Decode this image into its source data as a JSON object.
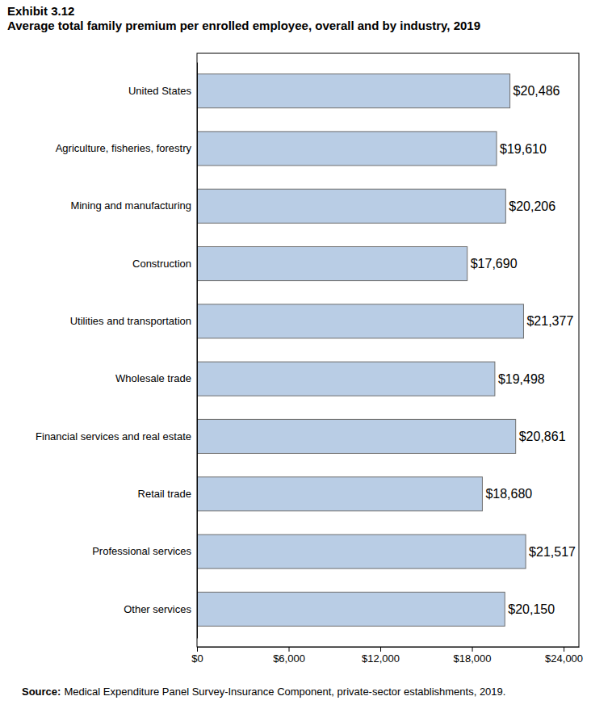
{
  "chart_data": {
    "type": "bar",
    "orientation": "horizontal",
    "title": "Exhibit 3.12",
    "subtitle": "Average total family premium per enrolled employee, overall and by industry, 2019",
    "source_label": "Source:",
    "source": "Medical Expenditure Panel Survey-Insurance Component, private-sector establishments, 2019.",
    "categories": [
      "United States",
      "Agriculture, fisheries, forestry",
      "Mining and manufacturing",
      "Construction",
      "Utilities and transportation",
      "Wholesale trade",
      "Financial services and real estate",
      "Retail trade",
      "Professional services",
      "Other services"
    ],
    "values": [
      20486,
      19610,
      20206,
      17690,
      21377,
      19498,
      20861,
      18680,
      21517,
      20150
    ],
    "value_labels": [
      "$20,486",
      "$19,610",
      "$20,206",
      "$17,690",
      "$21,377",
      "$19,498",
      "$20,861",
      "$18,680",
      "$21,517",
      "$20,150"
    ],
    "data_labels": true,
    "color": "#b9cde5",
    "xlim": [
      0,
      25000
    ],
    "xticks": [
      {
        "value": 0,
        "label": "$0"
      },
      {
        "value": 6000,
        "label": "$6,000"
      },
      {
        "value": 12000,
        "label": "$12,000"
      },
      {
        "value": 18000,
        "label": "$18,000"
      },
      {
        "value": 24000,
        "label": "$24,000"
      }
    ],
    "grid": false
  }
}
